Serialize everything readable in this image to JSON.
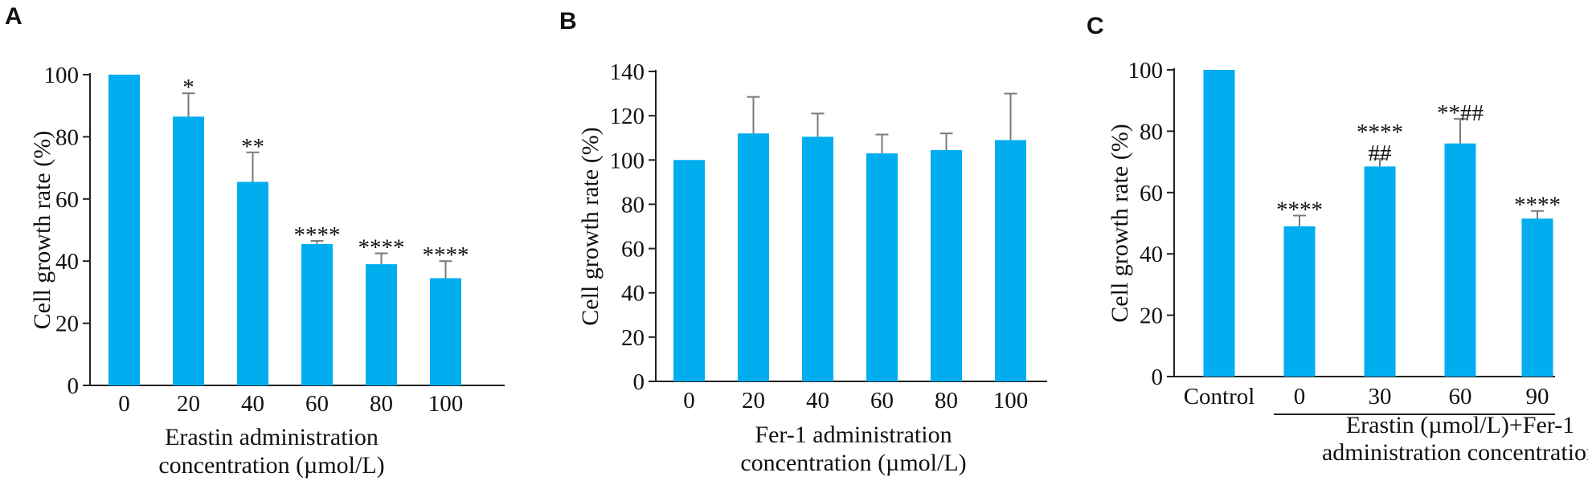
{
  "chart_data": [
    {
      "type": "bar",
      "panel_label": "A",
      "categories": [
        "0",
        "20",
        "40",
        "60",
        "80",
        "100"
      ],
      "values": [
        100,
        86.5,
        65.5,
        45.5,
        39,
        34.5
      ],
      "errors": [
        0,
        7.5,
        9.5,
        1,
        3.5,
        5.5
      ],
      "annotations": [
        "",
        "*",
        "**",
        "****",
        "****",
        "****"
      ],
      "ylabel": "Cell growth rate (%)",
      "xlabel_lines": [
        "Erastin administration",
        "concentration (µmol/L)"
      ],
      "ylim": [
        0,
        100
      ],
      "yticks": [
        0,
        20,
        40,
        60,
        80,
        100
      ],
      "bar_color": "#00aeef",
      "grid": false
    },
    {
      "type": "bar",
      "panel_label": "B",
      "categories": [
        "0",
        "20",
        "40",
        "60",
        "80",
        "100"
      ],
      "values": [
        100,
        112,
        110.5,
        103,
        104.5,
        109
      ],
      "errors": [
        0,
        16.5,
        10.5,
        8.5,
        7.5,
        21
      ],
      "annotations": [
        "",
        "",
        "",
        "",
        "",
        ""
      ],
      "ylabel": "Cell growth rate (%)",
      "xlabel_lines": [
        "Fer-1 administration",
        "concentration (µmol/L)"
      ],
      "ylim": [
        0,
        140
      ],
      "yticks": [
        0,
        20,
        40,
        60,
        80,
        100,
        120,
        140
      ],
      "bar_color": "#00aeef",
      "grid": false
    },
    {
      "type": "bar",
      "panel_label": "C",
      "categories": [
        "Control",
        "0",
        "30",
        "60",
        "90"
      ],
      "values": [
        100,
        49,
        68.5,
        76,
        51.5
      ],
      "errors": [
        0,
        3.5,
        2.5,
        8,
        2.5
      ],
      "annotations": [
        "",
        "****",
        "****\n##",
        "**##",
        "****"
      ],
      "ylabel": "Cell growth rate (%)",
      "xlabel_lines": [
        "Erastin (µmol/L)+Fer-1",
        "administration concentration"
      ],
      "ylim": [
        0,
        100
      ],
      "yticks": [
        0,
        20,
        40,
        60,
        80,
        100
      ],
      "bar_color": "#00aeef",
      "grid": false
    }
  ],
  "colors": {
    "bar": "#00aeef",
    "axis": "#222222",
    "error_bar": "#7a7a7a",
    "text": "#111111"
  }
}
